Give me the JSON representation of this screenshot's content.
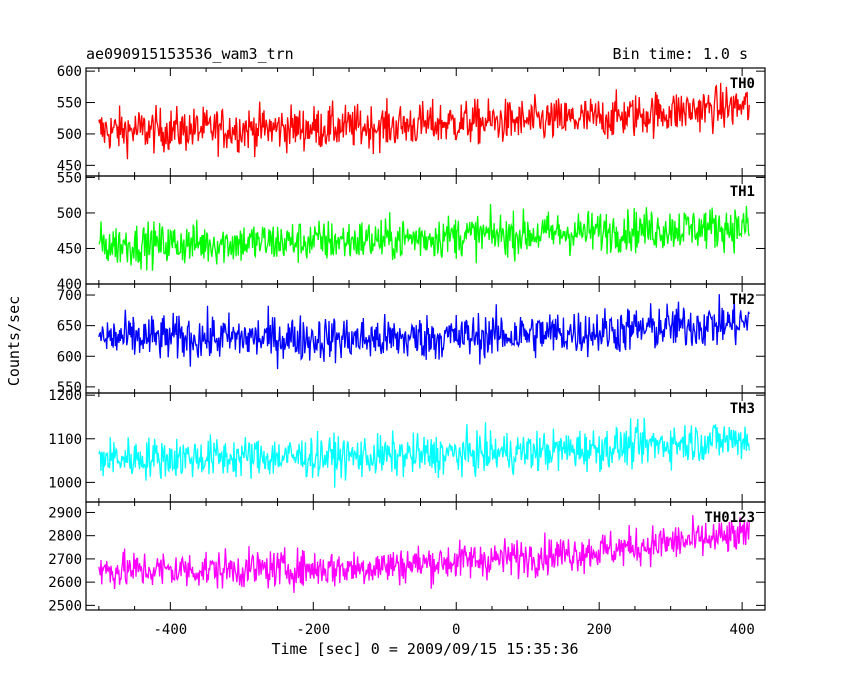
{
  "header": {
    "object": "ae090915153536_wam3_trn",
    "bin_time": "Bin time: 1.0 s"
  },
  "y_axis_label": "Counts/sec",
  "x_axis_label": "Time [sec] 0 = 2009/09/15 15:35:36",
  "chart_data": {
    "type": "line",
    "x_range": [
      -518,
      432
    ],
    "x_ticks": [
      -400,
      -200,
      0,
      200,
      400
    ],
    "panels": [
      {
        "label": "TH0",
        "color": "#ff0000",
        "ylim": [
          433,
          605
        ],
        "y_ticks": [
          450,
          500,
          550,
          600
        ],
        "trend": [
          [
            -500,
            505
          ],
          [
            -300,
            508
          ],
          [
            -100,
            512
          ],
          [
            0,
            518
          ],
          [
            100,
            520
          ],
          [
            200,
            525
          ],
          [
            300,
            535
          ],
          [
            410,
            545
          ]
        ],
        "noise": 28,
        "x_start": -500,
        "x_end": 410
      },
      {
        "label": "TH1",
        "color": "#00ff00",
        "ylim": [
          400,
          552
        ],
        "y_ticks": [
          400,
          450,
          500,
          550
        ],
        "trend": [
          [
            -500,
            455
          ],
          [
            -300,
            458
          ],
          [
            -100,
            462
          ],
          [
            0,
            468
          ],
          [
            100,
            470
          ],
          [
            200,
            474
          ],
          [
            300,
            478
          ],
          [
            410,
            480
          ]
        ],
        "noise": 24,
        "x_start": -500,
        "x_end": 410
      },
      {
        "label": "TH2",
        "color": "#0000ff",
        "ylim": [
          540,
          718
        ],
        "y_ticks": [
          550,
          600,
          650,
          700
        ],
        "trend": [
          [
            -500,
            630
          ],
          [
            -300,
            630
          ],
          [
            -100,
            628
          ],
          [
            0,
            632
          ],
          [
            100,
            636
          ],
          [
            200,
            640
          ],
          [
            300,
            648
          ],
          [
            410,
            655
          ]
        ],
        "noise": 30,
        "x_start": -500,
        "x_end": 410
      },
      {
        "label": "TH3",
        "color": "#00ffff",
        "ylim": [
          955,
          1205
        ],
        "y_ticks": [
          1000,
          1100,
          1200
        ],
        "trend": [
          [
            -500,
            1055
          ],
          [
            -300,
            1058
          ],
          [
            -100,
            1060
          ],
          [
            0,
            1065
          ],
          [
            100,
            1070
          ],
          [
            200,
            1078
          ],
          [
            300,
            1090
          ],
          [
            410,
            1100
          ]
        ],
        "noise": 38,
        "x_start": -500,
        "x_end": 410
      },
      {
        "label": "TH0123",
        "color": "#ff00ff",
        "ylim": [
          2480,
          2945
        ],
        "y_ticks": [
          2500,
          2600,
          2700,
          2800,
          2900
        ],
        "trend": [
          [
            -500,
            2650
          ],
          [
            -300,
            2655
          ],
          [
            -150,
            2660
          ],
          [
            0,
            2690
          ],
          [
            100,
            2710
          ],
          [
            200,
            2735
          ],
          [
            300,
            2770
          ],
          [
            410,
            2800
          ]
        ],
        "noise": 65,
        "x_start": -500,
        "x_end": 410
      }
    ]
  }
}
